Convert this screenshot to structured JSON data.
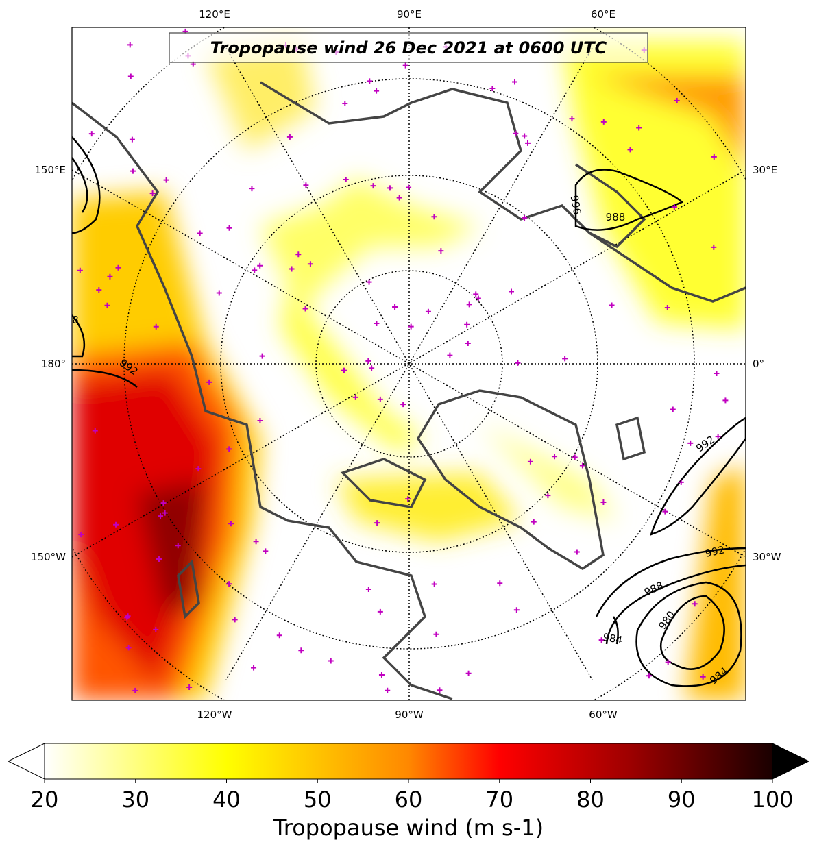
{
  "title": "Tropopause wind 26 Dec 2021 at 0600 UTC",
  "map": {
    "lon_labels_top": [
      "120°E",
      "90°E",
      "60°E"
    ],
    "lon_labels_left": [
      "150°E",
      "180°",
      "150°W"
    ],
    "lon_labels_right": [
      "30°E",
      "0°",
      "30°W"
    ],
    "lon_labels_bottom": [
      "120°W",
      "90°W",
      "60°W"
    ],
    "contour_labels": [
      996,
      988,
      992,
      992,
      992,
      988,
      980,
      984,
      984,
      8
    ]
  },
  "colorbar": {
    "label": "Tropopause wind (m s-1)",
    "lim": [
      20,
      100
    ],
    "ticks": [
      20,
      30,
      40,
      50,
      60,
      70,
      80,
      90,
      100
    ]
  }
}
